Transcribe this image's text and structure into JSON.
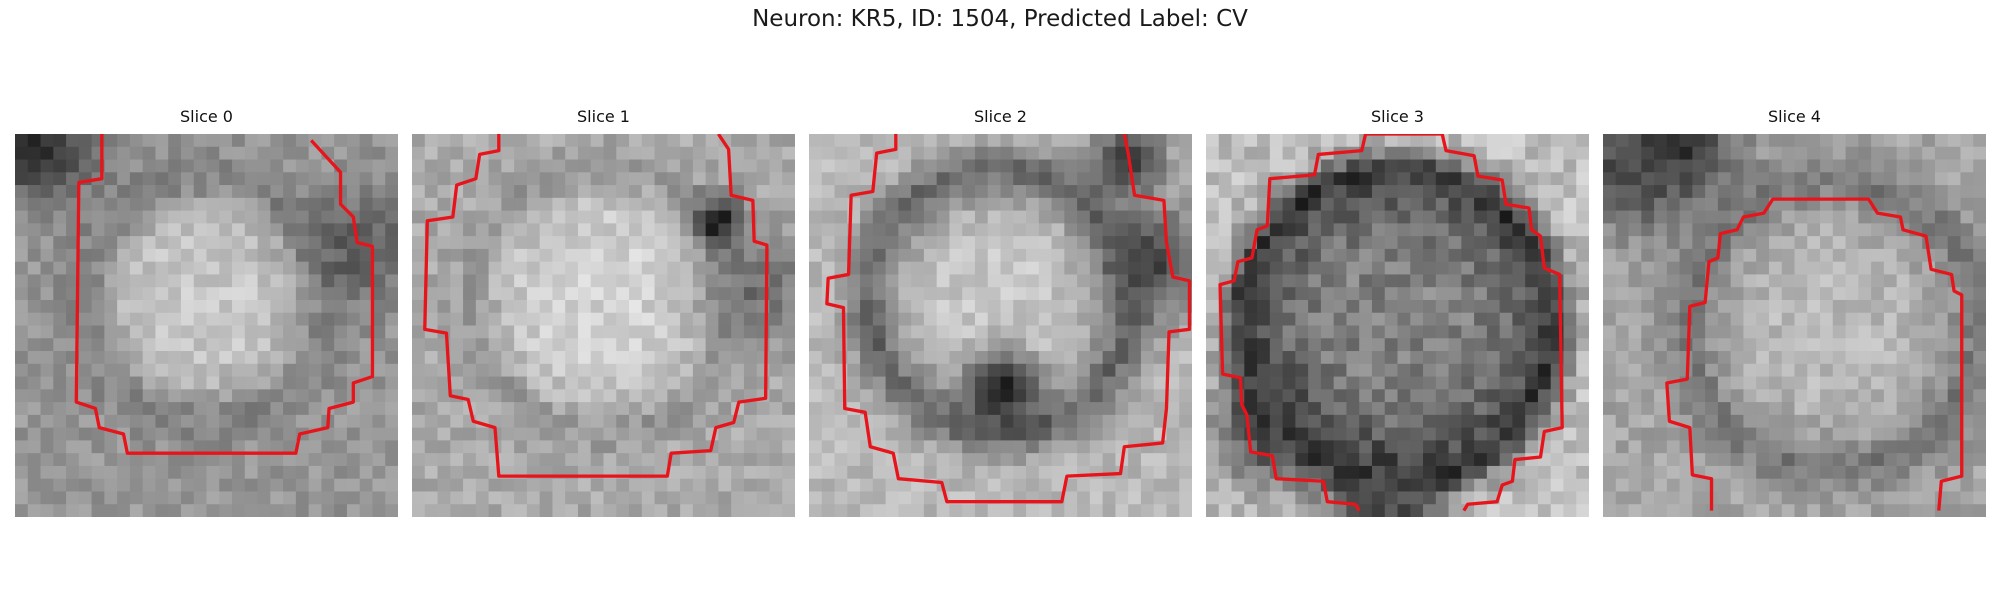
{
  "figure": {
    "title": "Neuron: KR5, ID: 1504, Predicted Label: CV"
  },
  "panels": [
    {
      "title": "Slice 0",
      "contour_color": "#e8141b"
    },
    {
      "title": "Slice 1",
      "contour_color": "#e8141b"
    },
    {
      "title": "Slice 2",
      "contour_color": "#e8141b"
    },
    {
      "title": "Slice 3",
      "contour_color": "#e8141b"
    },
    {
      "title": "Slice 4",
      "contour_color": "#e8141b"
    }
  ]
}
